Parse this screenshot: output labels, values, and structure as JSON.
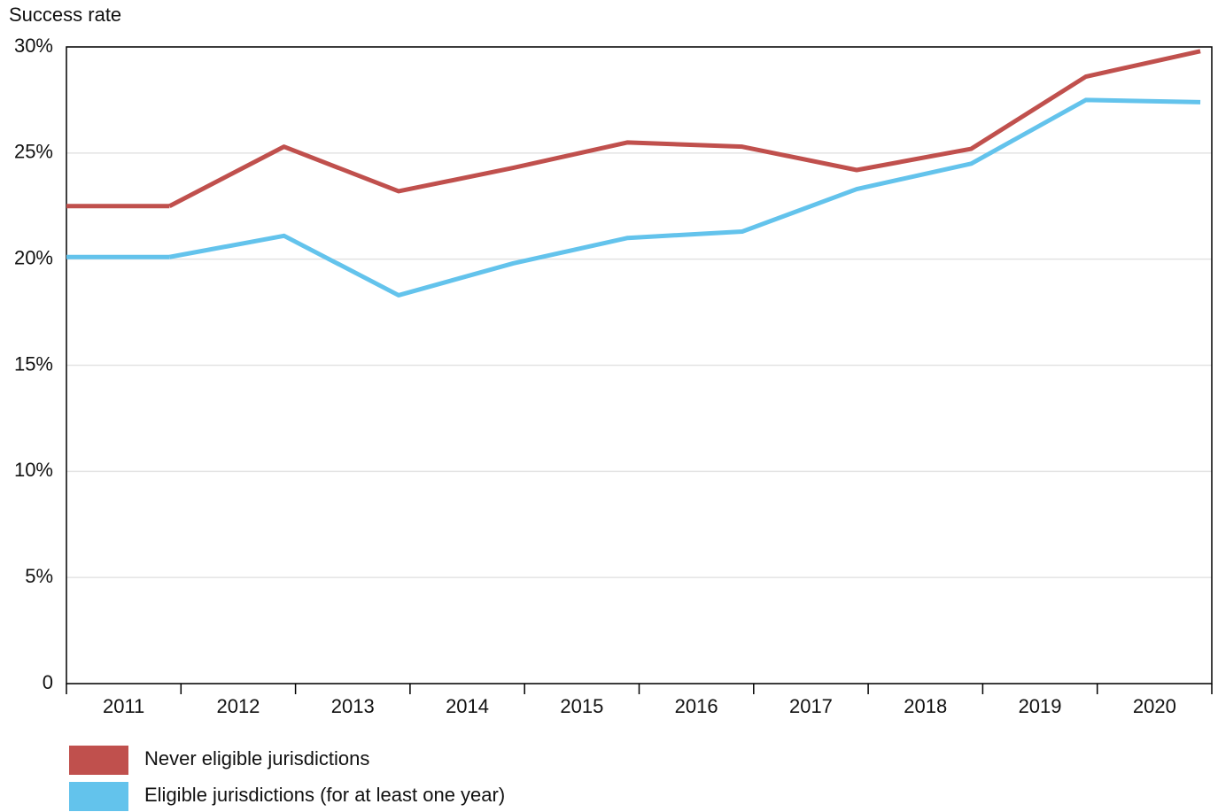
{
  "chart_data": {
    "type": "line",
    "y_label": "Success rate",
    "categories": [
      "2011",
      "2012",
      "2013",
      "2014",
      "2015",
      "2016",
      "2017",
      "2018",
      "2019",
      "2020"
    ],
    "series": [
      {
        "name": "Never eligible jurisdictions",
        "color": "#c0504d",
        "values": [
          22.5,
          25.3,
          23.2,
          24.3,
          25.5,
          25.3,
          24.2,
          25.2,
          28.6,
          29.8
        ]
      },
      {
        "name": "Eligible jurisdictions (for at least one year)",
        "color": "#63c3ec",
        "values": [
          20.1,
          21.1,
          18.3,
          19.8,
          21.0,
          21.3,
          23.3,
          24.5,
          27.5,
          27.4
        ]
      }
    ],
    "ylim": [
      0,
      30
    ],
    "yticks": [
      0,
      {
        "value": 5,
        "label": "5%"
      },
      {
        "value": 10,
        "label": "10%"
      },
      {
        "value": 15,
        "label": "15%"
      },
      {
        "value": 20,
        "label": "20%"
      },
      {
        "value": 25,
        "label": "25%"
      },
      {
        "value": 30,
        "label": "30%"
      }
    ],
    "grid": true,
    "legend": "bottom-left"
  }
}
